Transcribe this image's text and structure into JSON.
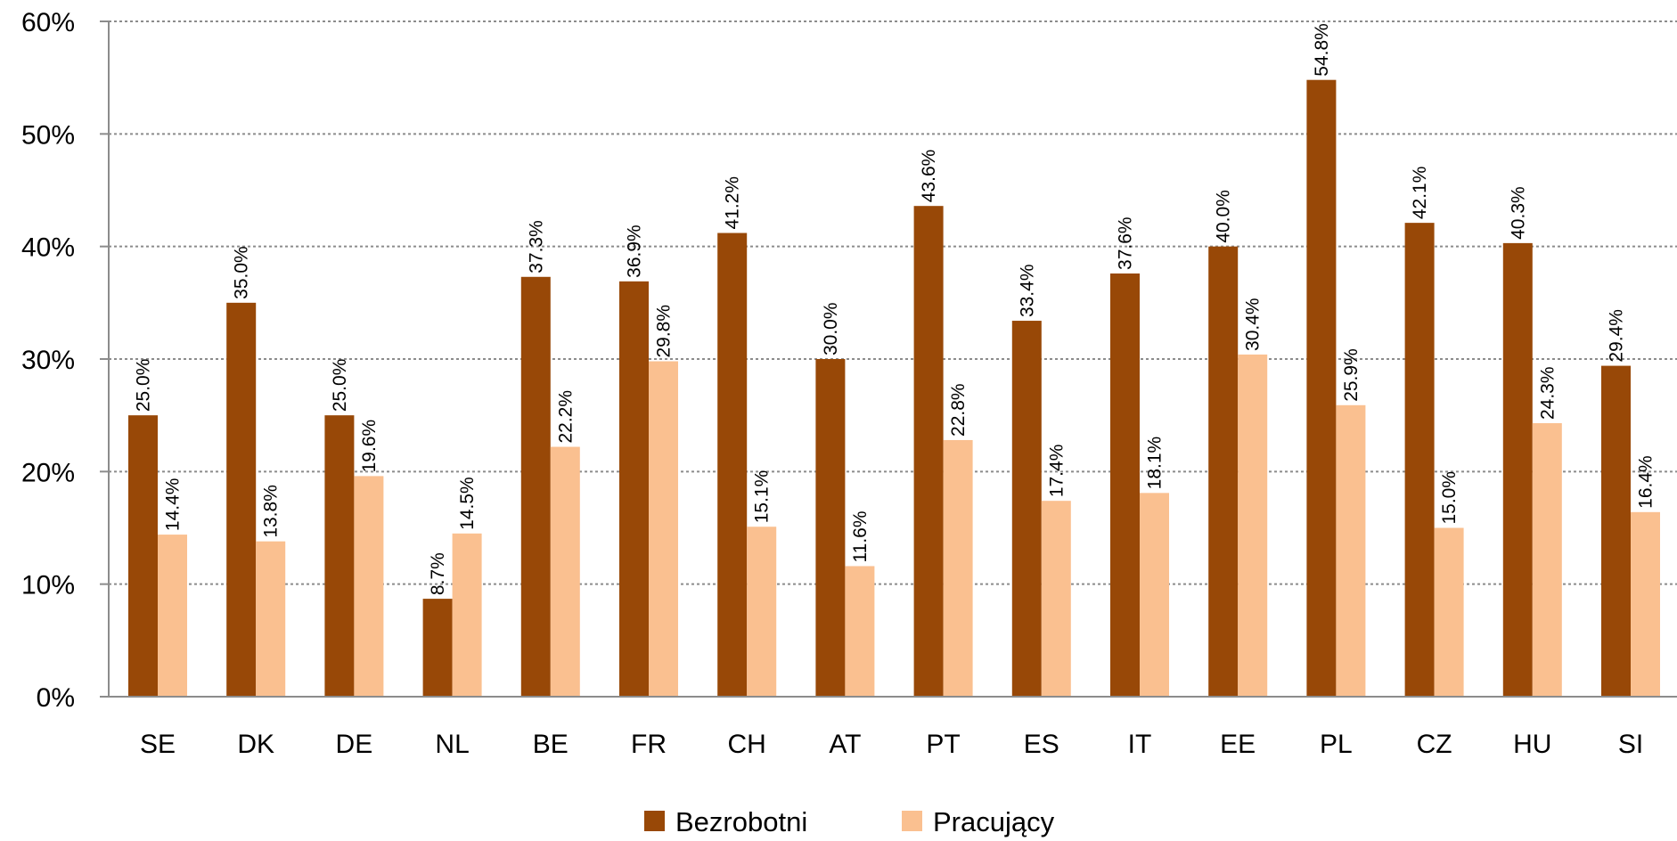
{
  "chart_data": {
    "type": "bar",
    "categories": [
      "SE",
      "DK",
      "DE",
      "NL",
      "BE",
      "FR",
      "CH",
      "AT",
      "PT",
      "ES",
      "IT",
      "EE",
      "PL",
      "CZ",
      "HU",
      "SI"
    ],
    "series": [
      {
        "name": "Bezrobotni",
        "color": "#984807",
        "values": [
          25.0,
          35.0,
          25.0,
          8.7,
          37.3,
          36.9,
          41.2,
          30.0,
          43.6,
          33.4,
          37.6,
          40.0,
          54.8,
          42.1,
          40.3,
          29.4
        ],
        "labels": [
          "25.0%",
          "35.0%",
          "25.0%",
          "8.7%",
          "37.3%",
          "36.9%",
          "41.2%",
          "30.0%",
          "43.6%",
          "33.4%",
          "37.6%",
          "40.0%",
          "54.8%",
          "42.1%",
          "40.3%",
          "29.4%"
        ]
      },
      {
        "name": "Pracujący",
        "color": "#FAC090",
        "values": [
          14.4,
          13.8,
          19.6,
          14.5,
          22.2,
          29.8,
          15.1,
          11.6,
          22.8,
          17.4,
          18.1,
          30.4,
          25.9,
          15.0,
          24.3,
          16.4
        ],
        "labels": [
          "14.4%",
          "13.8%",
          "19.6%",
          "14.5%",
          "22.2%",
          "29.8%",
          "15.1%",
          "11.6%",
          "22.8%",
          "17.4%",
          "18.1%",
          "30.4%",
          "25.9%",
          "15.0%",
          "24.3%",
          "16.4%"
        ]
      }
    ],
    "y_ticks": [
      "0%",
      "10%",
      "20%",
      "30%",
      "40%",
      "50%",
      "60%"
    ],
    "y_tick_values": [
      0,
      10,
      20,
      30,
      40,
      50,
      60
    ],
    "ylim": [
      0,
      60
    ],
    "grid": true,
    "legend_position": "bottom-center",
    "title": "",
    "xlabel": "",
    "ylabel": ""
  }
}
